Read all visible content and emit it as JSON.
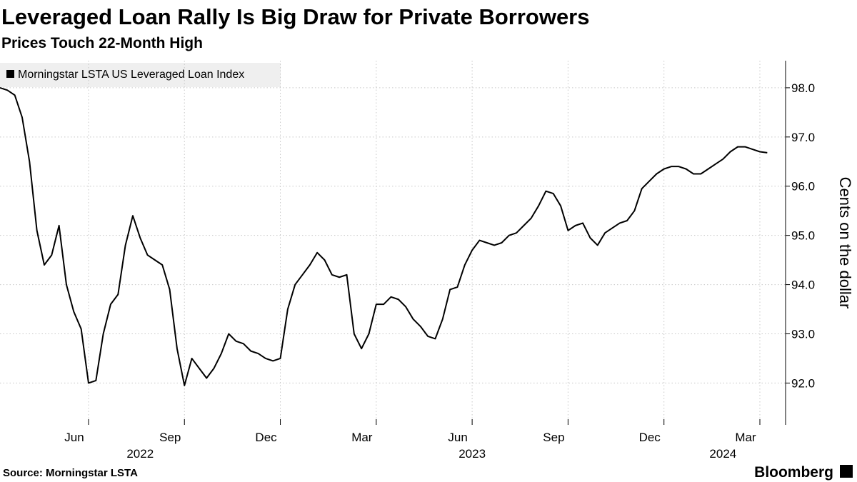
{
  "chart_data": {
    "type": "line",
    "title": "Leveraged Loan Rally Is Big Draw for Private Borrowers",
    "subtitle": "Prices Touch 22-Month High",
    "y_axis_label": "Cents on the dollar",
    "source": "Source: Morningstar LSTA",
    "brand": "Bloomberg",
    "categories": [
      null,
      null,
      null,
      null,
      null,
      null,
      null,
      null,
      null,
      null,
      null,
      null,
      "Jun",
      null,
      null,
      null,
      null,
      null,
      null,
      null,
      null,
      null,
      null,
      null,
      null,
      "Sep",
      null,
      null,
      null,
      null,
      null,
      null,
      null,
      null,
      null,
      null,
      null,
      null,
      "Dec",
      null,
      null,
      null,
      null,
      null,
      null,
      null,
      null,
      null,
      null,
      null,
      null,
      "Mar",
      null,
      null,
      null,
      null,
      null,
      null,
      null,
      null,
      null,
      null,
      null,
      null,
      "Jun",
      null,
      null,
      null,
      null,
      null,
      null,
      null,
      null,
      null,
      null,
      null,
      null,
      "Sep",
      null,
      null,
      null,
      null,
      null,
      null,
      null,
      null,
      null,
      null,
      null,
      null,
      "Dec",
      null,
      null,
      null,
      null,
      null,
      null,
      null,
      null,
      null,
      null,
      null,
      null,
      "Mar",
      null
    ],
    "year_categories": [
      null,
      null,
      null,
      null,
      null,
      null,
      null,
      null,
      null,
      null,
      null,
      null,
      null,
      null,
      null,
      null,
      null,
      null,
      null,
      "2022",
      null,
      null,
      null,
      null,
      null,
      null,
      null,
      null,
      null,
      null,
      null,
      null,
      null,
      null,
      null,
      null,
      null,
      null,
      null,
      null,
      null,
      null,
      null,
      null,
      null,
      null,
      null,
      null,
      null,
      null,
      null,
      null,
      null,
      null,
      null,
      null,
      null,
      null,
      null,
      null,
      null,
      null,
      null,
      null,
      "2023",
      null,
      null,
      null,
      null,
      null,
      null,
      null,
      null,
      null,
      null,
      null,
      null,
      null,
      null,
      null,
      null,
      null,
      null,
      null,
      null,
      null,
      null,
      null,
      null,
      null,
      null,
      null,
      null,
      null,
      null,
      null,
      null,
      null,
      "2024",
      null,
      null,
      null,
      null,
      null,
      null
    ],
    "series": [
      {
        "name": "Morningstar LSTA US Leveraged Loan Index",
        "color": "#000000",
        "values": [
          98.0,
          97.95,
          97.85,
          97.4,
          96.5,
          95.1,
          94.4,
          94.6,
          95.2,
          94.0,
          93.45,
          93.1,
          92.0,
          92.05,
          93.0,
          93.6,
          93.8,
          94.8,
          95.4,
          94.95,
          94.6,
          94.5,
          94.4,
          93.9,
          92.7,
          91.95,
          92.5,
          92.3,
          92.1,
          92.3,
          92.6,
          93.0,
          92.85,
          92.8,
          92.65,
          92.6,
          92.5,
          92.45,
          92.5,
          93.5,
          94.0,
          94.2,
          94.4,
          94.65,
          94.5,
          94.2,
          94.15,
          94.2,
          93.0,
          92.7,
          93.0,
          93.6,
          93.6,
          93.75,
          93.7,
          93.55,
          93.3,
          93.15,
          92.95,
          92.9,
          93.3,
          93.9,
          93.95,
          94.4,
          94.7,
          94.9,
          94.85,
          94.8,
          94.85,
          95.0,
          95.05,
          95.2,
          95.35,
          95.6,
          95.9,
          95.85,
          95.6,
          95.1,
          95.2,
          95.25,
          94.95,
          94.8,
          95.05,
          95.15,
          95.25,
          95.3,
          95.5,
          95.95,
          96.1,
          96.25,
          96.35,
          96.4,
          96.4,
          96.35,
          96.25,
          96.25,
          96.35,
          96.45,
          96.55,
          96.7,
          96.8,
          96.8,
          96.75,
          96.7,
          96.68
        ]
      }
    ],
    "ylim": [
      91.15,
      98.55
    ],
    "yticks": [
      {
        "value": 92,
        "label": "92.0"
      },
      {
        "value": 93,
        "label": "93.0"
      },
      {
        "value": 94,
        "label": "94.0"
      },
      {
        "value": 95,
        "label": "95.0"
      },
      {
        "value": 96,
        "label": "96.0"
      },
      {
        "value": 97,
        "label": "97.0"
      },
      {
        "value": 98,
        "label": "98.0"
      }
    ],
    "grid": true
  }
}
